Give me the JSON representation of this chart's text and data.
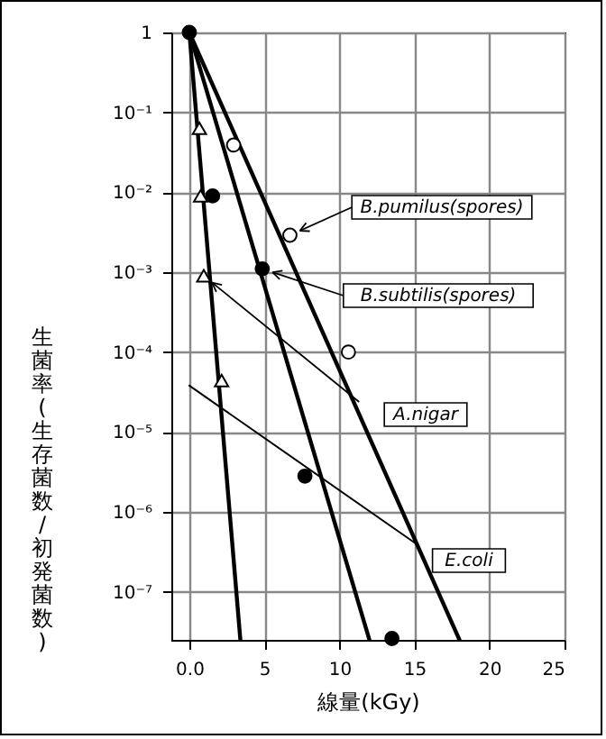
{
  "chart_data": {
    "type": "scatter",
    "xlabel": "線量(kGy)",
    "ylabel": "生菌率(生存菌数/初発菌数)",
    "log": "y",
    "grid": true,
    "legend": "right",
    "xlim": [
      -1.2,
      25
    ],
    "xticks": [
      {
        "value": 0,
        "label": "0.0"
      },
      5,
      10,
      15,
      20,
      25
    ],
    "ylim": [
      2.5e-08,
      1
    ],
    "yticks": [
      1,
      {
        "value": 0.1,
        "label": "10⁻¹"
      },
      {
        "value": 0.01,
        "label": "10⁻²"
      },
      {
        "value": 0.001,
        "label": "10⁻³"
      },
      {
        "value": 0.0001,
        "label": "10⁻⁴"
      },
      {
        "value": 1e-05,
        "label": "10⁻⁵"
      },
      {
        "value": 1e-06,
        "label": "10⁻⁶"
      },
      {
        "value": 1e-07,
        "label": "10⁻⁷"
      }
    ],
    "series": [
      {
        "type": "line",
        "color": "#000000",
        "x": [
          0,
          3.4
        ],
        "values": [
          1,
          2.5e-08
        ]
      },
      {
        "type": "line",
        "color": "#000000",
        "x": [
          0,
          12.0
        ],
        "values": [
          1,
          2.5e-08
        ]
      },
      {
        "type": "line",
        "color": "#000000",
        "x": [
          0,
          18.0
        ],
        "values": [
          1,
          2.5e-08
        ]
      },
      {
        "name": "E.coli",
        "type": "line",
        "color": "#000000",
        "x": [
          0,
          15.1
        ],
        "values": [
          3.8e-05,
          4e-07
        ]
      },
      {
        "name": "A.nigar",
        "type": "scatter",
        "marker": "triangle",
        "color": "#000000",
        "x": [
          0.67,
          0.75,
          0.96,
          2.15
        ],
        "values": [
          0.063,
          0.009,
          0.0009,
          4.4e-05
        ]
      },
      {
        "name": "B.pumilus(spores)",
        "type": "scatter",
        "marker": "circle",
        "color": "#000000",
        "x": [
          2.95,
          6.7,
          10.6
        ],
        "values": [
          0.039,
          0.0029,
          0.0001
        ]
      },
      {
        "name": "B.subtilis(spores)",
        "type": "scatter",
        "marker": "circle",
        "color": "#000000",
        "x": [
          0,
          1.55,
          4.86,
          7.7,
          13.5
        ],
        "values": [
          1,
          0.009,
          0.0011,
          2.8e-06,
          2.6e-08
        ]
      }
    ]
  }
}
